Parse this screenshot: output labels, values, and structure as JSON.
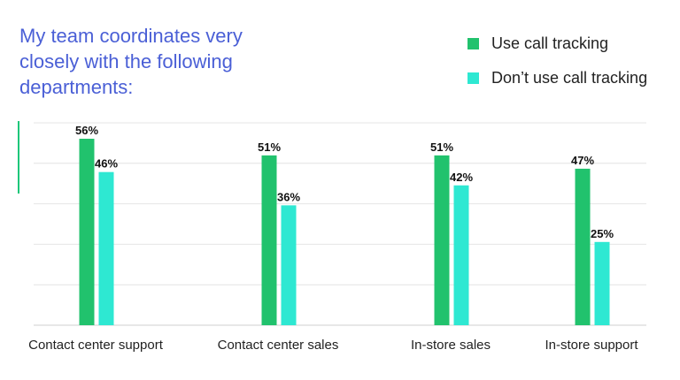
{
  "chart_data": {
    "type": "bar",
    "title": "My team coordinates very closely with the following departments:",
    "categories": [
      "Contact center support",
      "Contact center sales",
      "In-store sales",
      "In-store support"
    ],
    "series": [
      {
        "name": "Use call tracking",
        "values": [
          56,
          51,
          51,
          47
        ],
        "color": "#21c26d"
      },
      {
        "name": "Don’t use call tracking",
        "values": [
          46,
          36,
          42,
          25
        ],
        "color": "#2ee8d2"
      }
    ],
    "value_suffix": "%",
    "xlabel": "",
    "ylabel": "",
    "ylim": [
      0,
      60
    ],
    "grid": true,
    "legend_position": "top-right"
  }
}
